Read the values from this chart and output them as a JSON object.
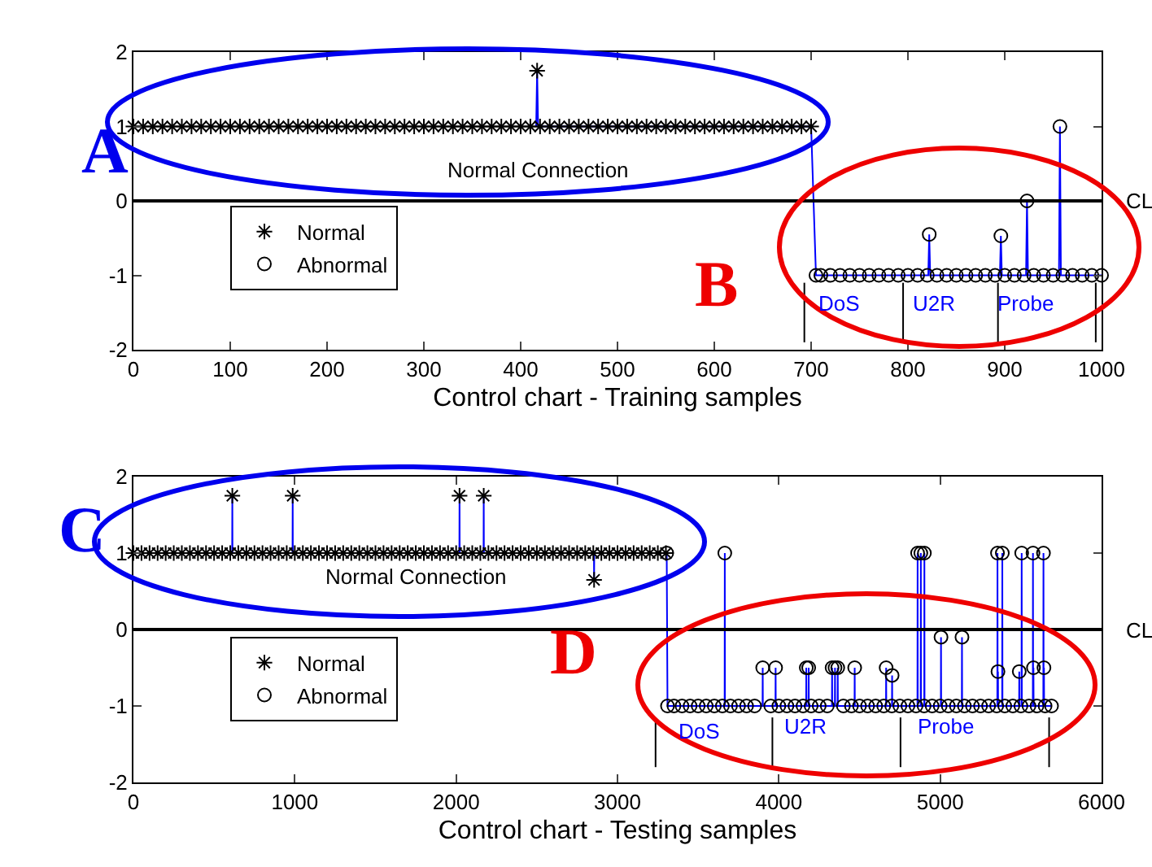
{
  "chart_data": [
    {
      "type": "scatter",
      "xlabel": "Control chart - Training samples",
      "xlim": [
        0,
        1000
      ],
      "xticks": [
        0,
        100,
        200,
        300,
        400,
        500,
        600,
        700,
        800,
        900,
        1000
      ],
      "ylim": [
        -2,
        2
      ],
      "yticks": [
        -2,
        -1,
        0,
        1,
        2
      ],
      "grid": false,
      "legend": "bottom left",
      "series": [
        {
          "type": "line",
          "color": "#0000ff",
          "marker": "none",
          "x": [
            416,
            417,
            418,
            700,
            705,
            821,
            822,
            823,
            895,
            896,
            897,
            922,
            923,
            924,
            956,
            957,
            958,
            1000
          ],
          "values": [
            1,
            1.75,
            1,
            1,
            -1,
            -1,
            -0.45,
            -1,
            -1,
            -0.47,
            -1,
            -1,
            0,
            -1,
            -1,
            1,
            -1,
            -1
          ]
        },
        {
          "type": "line",
          "color": "#000000",
          "marker": "none",
          "x": [
            693,
            693
          ],
          "values": [
            -1.1,
            -1.9
          ]
        },
        {
          "type": "line",
          "color": "#000000",
          "marker": "none",
          "x": [
            795,
            795
          ],
          "values": [
            -1.1,
            -1.9
          ]
        },
        {
          "type": "line",
          "color": "#000000",
          "marker": "none",
          "x": [
            893,
            893
          ],
          "values": [
            -1.1,
            -1.9
          ]
        },
        {
          "type": "line",
          "color": "#000000",
          "marker": "none",
          "x": [
            994,
            994
          ],
          "values": [
            -1.1,
            -1.9
          ]
        },
        {
          "name": "Normal",
          "color": "#000000",
          "marker": "cross",
          "x": [
            0,
            10,
            20,
            30,
            40,
            50,
            60,
            70,
            80,
            90,
            100,
            110,
            120,
            130,
            140,
            150,
            160,
            170,
            180,
            190,
            200,
            210,
            220,
            230,
            240,
            250,
            260,
            270,
            280,
            290,
            300,
            310,
            320,
            330,
            340,
            350,
            360,
            370,
            380,
            390,
            400,
            410,
            417,
            420,
            430,
            440,
            450,
            460,
            470,
            480,
            490,
            500,
            510,
            520,
            530,
            540,
            550,
            560,
            570,
            580,
            590,
            600,
            610,
            620,
            630,
            640,
            650,
            660,
            670,
            680,
            690,
            700
          ],
          "values": [
            1,
            1,
            1,
            1,
            1,
            1,
            1,
            1,
            1,
            1,
            1,
            1,
            1,
            1,
            1,
            1,
            1,
            1,
            1,
            1,
            1,
            1,
            1,
            1,
            1,
            1,
            1,
            1,
            1,
            1,
            1,
            1,
            1,
            1,
            1,
            1,
            1,
            1,
            1,
            1,
            1,
            1,
            1.75,
            1,
            1,
            1,
            1,
            1,
            1,
            1,
            1,
            1,
            1,
            1,
            1,
            1,
            1,
            1,
            1,
            1,
            1,
            1,
            1,
            1,
            1,
            1,
            1,
            1,
            1,
            1,
            1,
            1
          ]
        },
        {
          "name": "Abnormal",
          "color": "#000000",
          "marker": "circle",
          "x": [
            705,
            710,
            720,
            730,
            740,
            750,
            760,
            770,
            780,
            790,
            800,
            810,
            820,
            822,
            830,
            840,
            850,
            860,
            870,
            880,
            890,
            896,
            900,
            910,
            920,
            923,
            930,
            940,
            950,
            957,
            960,
            970,
            980,
            990,
            1000
          ],
          "values": [
            -1,
            -1,
            -1,
            -1,
            -1,
            -1,
            -1,
            -1,
            -1,
            -1,
            -1,
            -1,
            -1,
            -0.45,
            -1,
            -1,
            -1,
            -1,
            -1,
            -1,
            -1,
            -0.47,
            -1,
            -1,
            -1,
            0,
            -1,
            -1,
            -1,
            1,
            -1,
            -1,
            -1,
            -1,
            -1
          ]
        }
      ],
      "ref_lines": [
        {
          "axis": "y",
          "value": 0,
          "label": "CL",
          "color": "#000000"
        }
      ],
      "annotations": [
        "A",
        "B",
        "Normal Connection",
        "DoS",
        "U2R",
        "Probe"
      ]
    },
    {
      "type": "scatter",
      "xlabel": "Control chart - Testing samples",
      "xlim": [
        0,
        6000
      ],
      "xticks": [
        0,
        1000,
        2000,
        3000,
        4000,
        5000,
        6000
      ],
      "ylim": [
        -2,
        2
      ],
      "yticks": [
        -2,
        -1,
        0,
        1,
        2
      ],
      "grid": false,
      "legend": "bottom left",
      "series": [
        {
          "type": "line",
          "color": "#0000ff",
          "marker": "none",
          "x": [
            612,
            613,
            614,
            986,
            987,
            988,
            2020,
            2021,
            2022,
            2170,
            2171,
            2172,
            2854,
            2855,
            2856,
            3300,
            3305,
            3310,
            3664,
            3665,
            3666,
            3899,
            3900,
            3901,
            3979,
            3980,
            3981,
            4169,
            4170,
            4171,
            4184,
            4185,
            4186,
            4329,
            4330,
            4331,
            4347,
            4348,
            4349,
            4364,
            4365,
            4366,
            4469,
            4470,
            4471,
            4664,
            4665,
            4666,
            4701,
            4702,
            4703,
            4859,
            4860,
            4861,
            4879,
            4880,
            4881,
            4901,
            4902,
            4903,
            5004,
            5005,
            5006,
            5134,
            5135,
            5136,
            5354,
            5355,
            5356,
            5357,
            5358,
            5359,
            5384,
            5385,
            5386,
            5489,
            5490,
            5491,
            5504,
            5505,
            5506,
            5574,
            5575,
            5576,
            5577,
            5578,
            5579,
            5639,
            5640,
            5641,
            5642,
            5643,
            5644,
            5690
          ],
          "values": [
            1,
            1.75,
            1,
            1,
            1.75,
            1,
            1,
            1.75,
            1,
            1,
            1.75,
            1,
            1,
            0.65,
            1,
            1,
            1,
            -1,
            -1,
            1,
            -1,
            -1,
            -0.5,
            -1,
            -1,
            -0.5,
            -1,
            -1,
            -0.5,
            -1,
            -1,
            -0.5,
            -1,
            -1,
            -0.5,
            -1,
            -1,
            -0.5,
            -1,
            -1,
            -0.5,
            -1,
            -1,
            -0.5,
            -1,
            -1,
            -0.5,
            -1,
            -1,
            -0.6,
            -1,
            -1,
            1,
            -1,
            -1,
            1,
            -1,
            -1,
            1,
            -1,
            -1,
            -0.1,
            -1,
            -1,
            -0.1,
            -1,
            -1,
            1,
            -1,
            -1,
            -0.55,
            -1,
            -1,
            1,
            -1,
            -1,
            -0.55,
            -1,
            -1,
            1,
            -1,
            -1,
            1,
            -1,
            -1,
            -0.5,
            -1,
            -1,
            1,
            -1,
            -1,
            -0.5,
            -1,
            -1
          ]
        },
        {
          "type": "line",
          "color": "#000000",
          "marker": "none",
          "x": [
            3236,
            3236
          ],
          "values": [
            -1.15,
            -1.8
          ]
        },
        {
          "type": "line",
          "color": "#000000",
          "marker": "none",
          "x": [
            3960,
            3960
          ],
          "values": [
            -1.15,
            -1.8
          ]
        },
        {
          "type": "line",
          "color": "#000000",
          "marker": "none",
          "x": [
            4754,
            4754
          ],
          "values": [
            -1.15,
            -1.8
          ]
        },
        {
          "type": "line",
          "color": "#000000",
          "marker": "none",
          "x": [
            5675,
            5675
          ],
          "values": [
            -1.15,
            -1.8
          ]
        },
        {
          "name": "Normal",
          "color": "#000000",
          "marker": "cross",
          "x": [
            0,
            50,
            100,
            150,
            200,
            250,
            300,
            350,
            400,
            450,
            500,
            550,
            600,
            613,
            650,
            700,
            750,
            800,
            850,
            900,
            950,
            987,
            1000,
            1050,
            1100,
            1150,
            1200,
            1250,
            1300,
            1350,
            1400,
            1450,
            1500,
            1550,
            1600,
            1650,
            1700,
            1750,
            1800,
            1850,
            1900,
            1950,
            2000,
            2021,
            2050,
            2100,
            2150,
            2171,
            2200,
            2250,
            2300,
            2350,
            2400,
            2450,
            2500,
            2550,
            2600,
            2650,
            2700,
            2750,
            2800,
            2850,
            2855,
            2900,
            2950,
            3000,
            3050,
            3100,
            3150,
            3200,
            3250,
            3300
          ],
          "values": [
            1,
            1,
            1,
            1,
            1,
            1,
            1,
            1,
            1,
            1,
            1,
            1,
            1,
            1.75,
            1,
            1,
            1,
            1,
            1,
            1,
            1,
            1.75,
            1,
            1,
            1,
            1,
            1,
            1,
            1,
            1,
            1,
            1,
            1,
            1,
            1,
            1,
            1,
            1,
            1,
            1,
            1,
            1,
            1,
            1.75,
            1,
            1,
            1,
            1.75,
            1,
            1,
            1,
            1,
            1,
            1,
            1,
            1,
            1,
            1,
            1,
            1,
            1,
            1,
            0.65,
            1,
            1,
            1,
            1,
            1,
            1,
            1,
            1,
            1
          ]
        },
        {
          "name": "Abnormal",
          "color": "#000000",
          "marker": "circle",
          "x": [
            3305,
            3310,
            3350,
            3400,
            3450,
            3500,
            3550,
            3600,
            3650,
            3665,
            3700,
            3750,
            3800,
            3850,
            3900,
            3950,
            3980,
            4000,
            4050,
            4100,
            4150,
            4170,
            4185,
            4200,
            4250,
            4300,
            4330,
            4348,
            4365,
            4400,
            4450,
            4470,
            4500,
            4550,
            4600,
            4650,
            4665,
            4700,
            4702,
            4750,
            4800,
            4850,
            4860,
            4880,
            4900,
            4902,
            4950,
            5000,
            5005,
            5050,
            5100,
            5135,
            5150,
            5200,
            5250,
            5300,
            5350,
            5355,
            5358,
            5385,
            5400,
            5450,
            5490,
            5500,
            5505,
            5550,
            5575,
            5578,
            5600,
            5640,
            5643,
            5650,
            5690
          ],
          "values": [
            1,
            -1,
            -1,
            -1,
            -1,
            -1,
            -1,
            -1,
            -1,
            1,
            -1,
            -1,
            -1,
            -1,
            -0.5,
            -1,
            -0.5,
            -1,
            -1,
            -1,
            -1,
            -0.5,
            -0.5,
            -1,
            -1,
            -1,
            -0.5,
            -0.5,
            -0.5,
            -1,
            -1,
            -0.5,
            -1,
            -1,
            -1,
            -1,
            -0.5,
            -1,
            -0.6,
            -1,
            -1,
            -1,
            1,
            1,
            -1,
            1,
            -1,
            -1,
            -0.1,
            -1,
            -1,
            -0.1,
            -1,
            -1,
            -1,
            -1,
            -1,
            1,
            -0.55,
            1,
            -1,
            -1,
            -0.55,
            -1,
            1,
            -1,
            1,
            -0.5,
            -1,
            1,
            -0.5,
            -1,
            -1
          ]
        }
      ],
      "ref_lines": [
        {
          "axis": "y",
          "value": 0,
          "label": "CL",
          "color": "#000000"
        }
      ],
      "annotations": [
        "C",
        "D",
        "Normal Connection",
        "DoS",
        "U2R",
        "Probe"
      ]
    }
  ]
}
